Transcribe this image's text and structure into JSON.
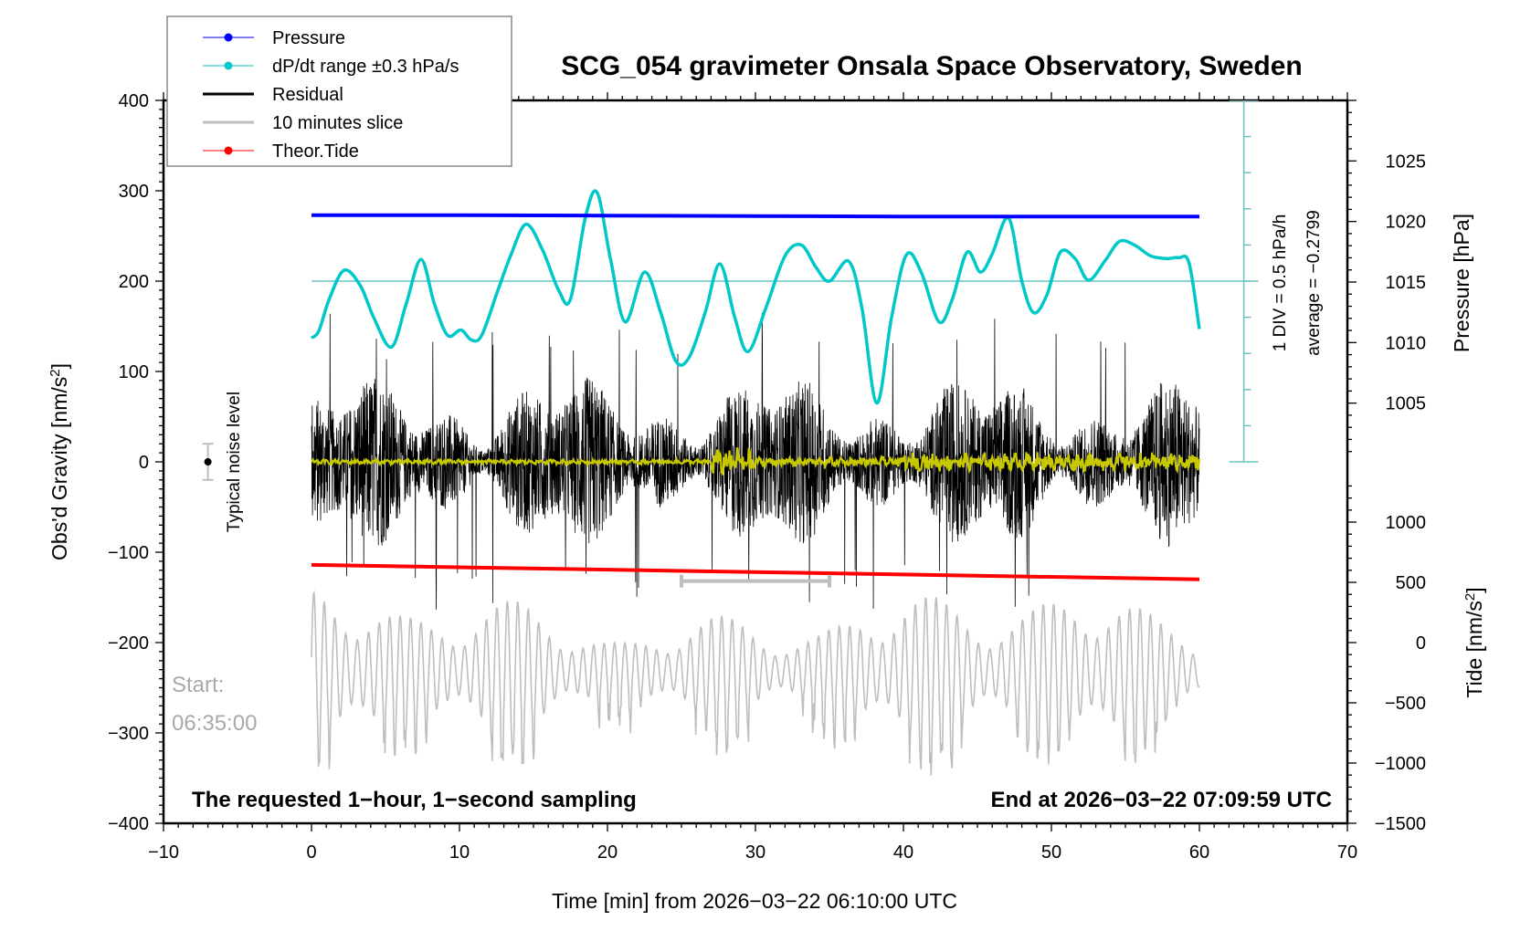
{
  "chart_data": {
    "type": "line",
    "title": "SCG_054 gravimeter Onsala Space Observatory, Sweden",
    "xlabel": "Time [min] from 2026−03−22 06:10:00 UTC",
    "ylabel": "Obs'd Gravity [nm/s²]",
    "ylabel_right_top": "Pressure [hPa]",
    "ylabel_right_bottom": "Tide [nm/s²]",
    "xlim": [
      -10,
      70
    ],
    "ylim": [
      -400,
      400
    ],
    "x_ticks": [
      "−10",
      "0",
      "10",
      "20",
      "30",
      "40",
      "50",
      "60",
      "70"
    ],
    "x_tick_values": [
      -10,
      0,
      10,
      20,
      30,
      40,
      50,
      60,
      70
    ],
    "y_ticks": [
      "400",
      "300",
      "200",
      "100",
      "0",
      "−100",
      "−200",
      "−300",
      "−400"
    ],
    "y_tick_values": [
      400,
      300,
      200,
      100,
      0,
      -100,
      -200,
      -300,
      -400
    ],
    "pressure_axis": {
      "ticks": [
        "1025",
        "1020",
        "1015",
        "1010",
        "1005"
      ],
      "tick_values": [
        1025,
        1020,
        1015,
        1010,
        1005
      ],
      "gravity_equivalent_of_1025": 333,
      "gravity_per_hpa": 13.4
    },
    "tide_axis": {
      "ticks": [
        "1000",
        "500",
        "0",
        "−500",
        "−1000",
        "−1500"
      ],
      "tick_values": [
        1000,
        500,
        0,
        -500,
        -1000,
        -1500
      ],
      "gravity_equivalent_of_0": -200,
      "gravity_per_unit": 0.1333
    },
    "legend": {
      "placement": "top-left",
      "entries": [
        {
          "label": "Pressure",
          "color": "#0000ff",
          "marker": "dot"
        },
        {
          "label": "dP/dt range ±0.3 hPa/s",
          "color": "#00c8c8",
          "marker": "dot"
        },
        {
          "label": "Residual",
          "color": "#000000",
          "marker": "line"
        },
        {
          "label": "10 minutes slice",
          "color": "#bebebe",
          "marker": "line"
        },
        {
          "label": "Theor.Tide",
          "color": "#ff0000",
          "marker": "dot"
        }
      ]
    },
    "series": [
      {
        "name": "Pressure",
        "color": "#0000ff",
        "axis": "gravity-equivalent",
        "x": [
          0,
          10,
          20,
          30,
          40,
          50,
          60
        ],
        "y": [
          273,
          273,
          272.5,
          272,
          271.5,
          271.5,
          271.5
        ]
      },
      {
        "name": "dP/dt",
        "color": "#00c8c8",
        "axis": "gravity-equivalent",
        "x": [
          0,
          0.5,
          1.2,
          2.2,
          3.3,
          4.2,
          5.4,
          6.4,
          7.4,
          8.3,
          9.2,
          10.1,
          10.8,
          11.5,
          12.6,
          13.5,
          14.5,
          15.6,
          16.7,
          17.5,
          18.5,
          19.3,
          20.2,
          21.2,
          22.5,
          23.6,
          24.6,
          25.5,
          26.6,
          27.6,
          28.6,
          29.5,
          30.7,
          32.0,
          33.1,
          34.1,
          35.0,
          36.3,
          37.2,
          38.2,
          39.2,
          40.2,
          41.2,
          42.4,
          43.3,
          44.3,
          45.2,
          46.0,
          47.1,
          48.0,
          48.8,
          49.7,
          50.6,
          51.6,
          52.5,
          53.6,
          54.6,
          55.6,
          56.7,
          57.8,
          58.6,
          59.3,
          60.0
        ],
        "y": [
          137,
          145,
          180,
          212,
          195,
          160,
          127,
          175,
          224,
          175,
          140,
          146,
          135,
          140,
          190,
          230,
          263,
          235,
          190,
          180,
          270,
          298,
          225,
          155,
          210,
          165,
          112,
          115,
          165,
          219,
          160,
          122,
          170,
          228,
          240,
          215,
          200,
          222,
          170,
          65,
          160,
          229,
          210,
          155,
          180,
          232,
          210,
          230,
          270,
          200,
          165,
          185,
          232,
          225,
          201,
          222,
          244,
          240,
          228,
          225,
          226,
          220,
          147
        ]
      },
      {
        "name": "Theor.Tide",
        "color": "#ff0000",
        "axis": "gravity-equivalent",
        "x": [
          0,
          60
        ],
        "y": [
          -114,
          -130
        ]
      },
      {
        "name": "Residual",
        "color": "#000000",
        "axis": "gravity",
        "x_range": [
          0,
          60
        ],
        "amplitude_range": [
          -165,
          170
        ],
        "sampling": "1 second"
      },
      {
        "name": "Residual (filtered)",
        "color": "#c8c800",
        "axis": "gravity",
        "x_range": [
          0,
          60
        ],
        "amplitude_range": [
          -20,
          20
        ]
      },
      {
        "name": "10 minutes slice",
        "color": "#bebebe",
        "axis": "gravity-equivalent",
        "x_range": [
          0,
          60
        ],
        "y_range": [
          -360,
          -100
        ]
      }
    ],
    "reference_line": {
      "name": "dP/dt zero line",
      "y": 200,
      "color": "#6cc6c0"
    },
    "slice_marker": {
      "x_start": 25,
      "x_end": 35,
      "y": -132,
      "color": "#bebebe"
    },
    "noise_level": {
      "x": -7,
      "y": 0,
      "error": 20,
      "label": "Typical noise level"
    },
    "dpdt_scale": {
      "x": 63,
      "y_top": 400,
      "y_bottom": 0,
      "divisions": 10,
      "label_1": "1 DIV = 0.5 hPa/h",
      "label_2": "average = −0.2799"
    },
    "annotations": {
      "start_label": "Start:",
      "start_time": "06:35:00",
      "bottom_left": "The requested 1−hour, 1−second sampling",
      "bottom_right": "End at 2026−03−22 07:09:59 UTC"
    },
    "grid": false
  }
}
